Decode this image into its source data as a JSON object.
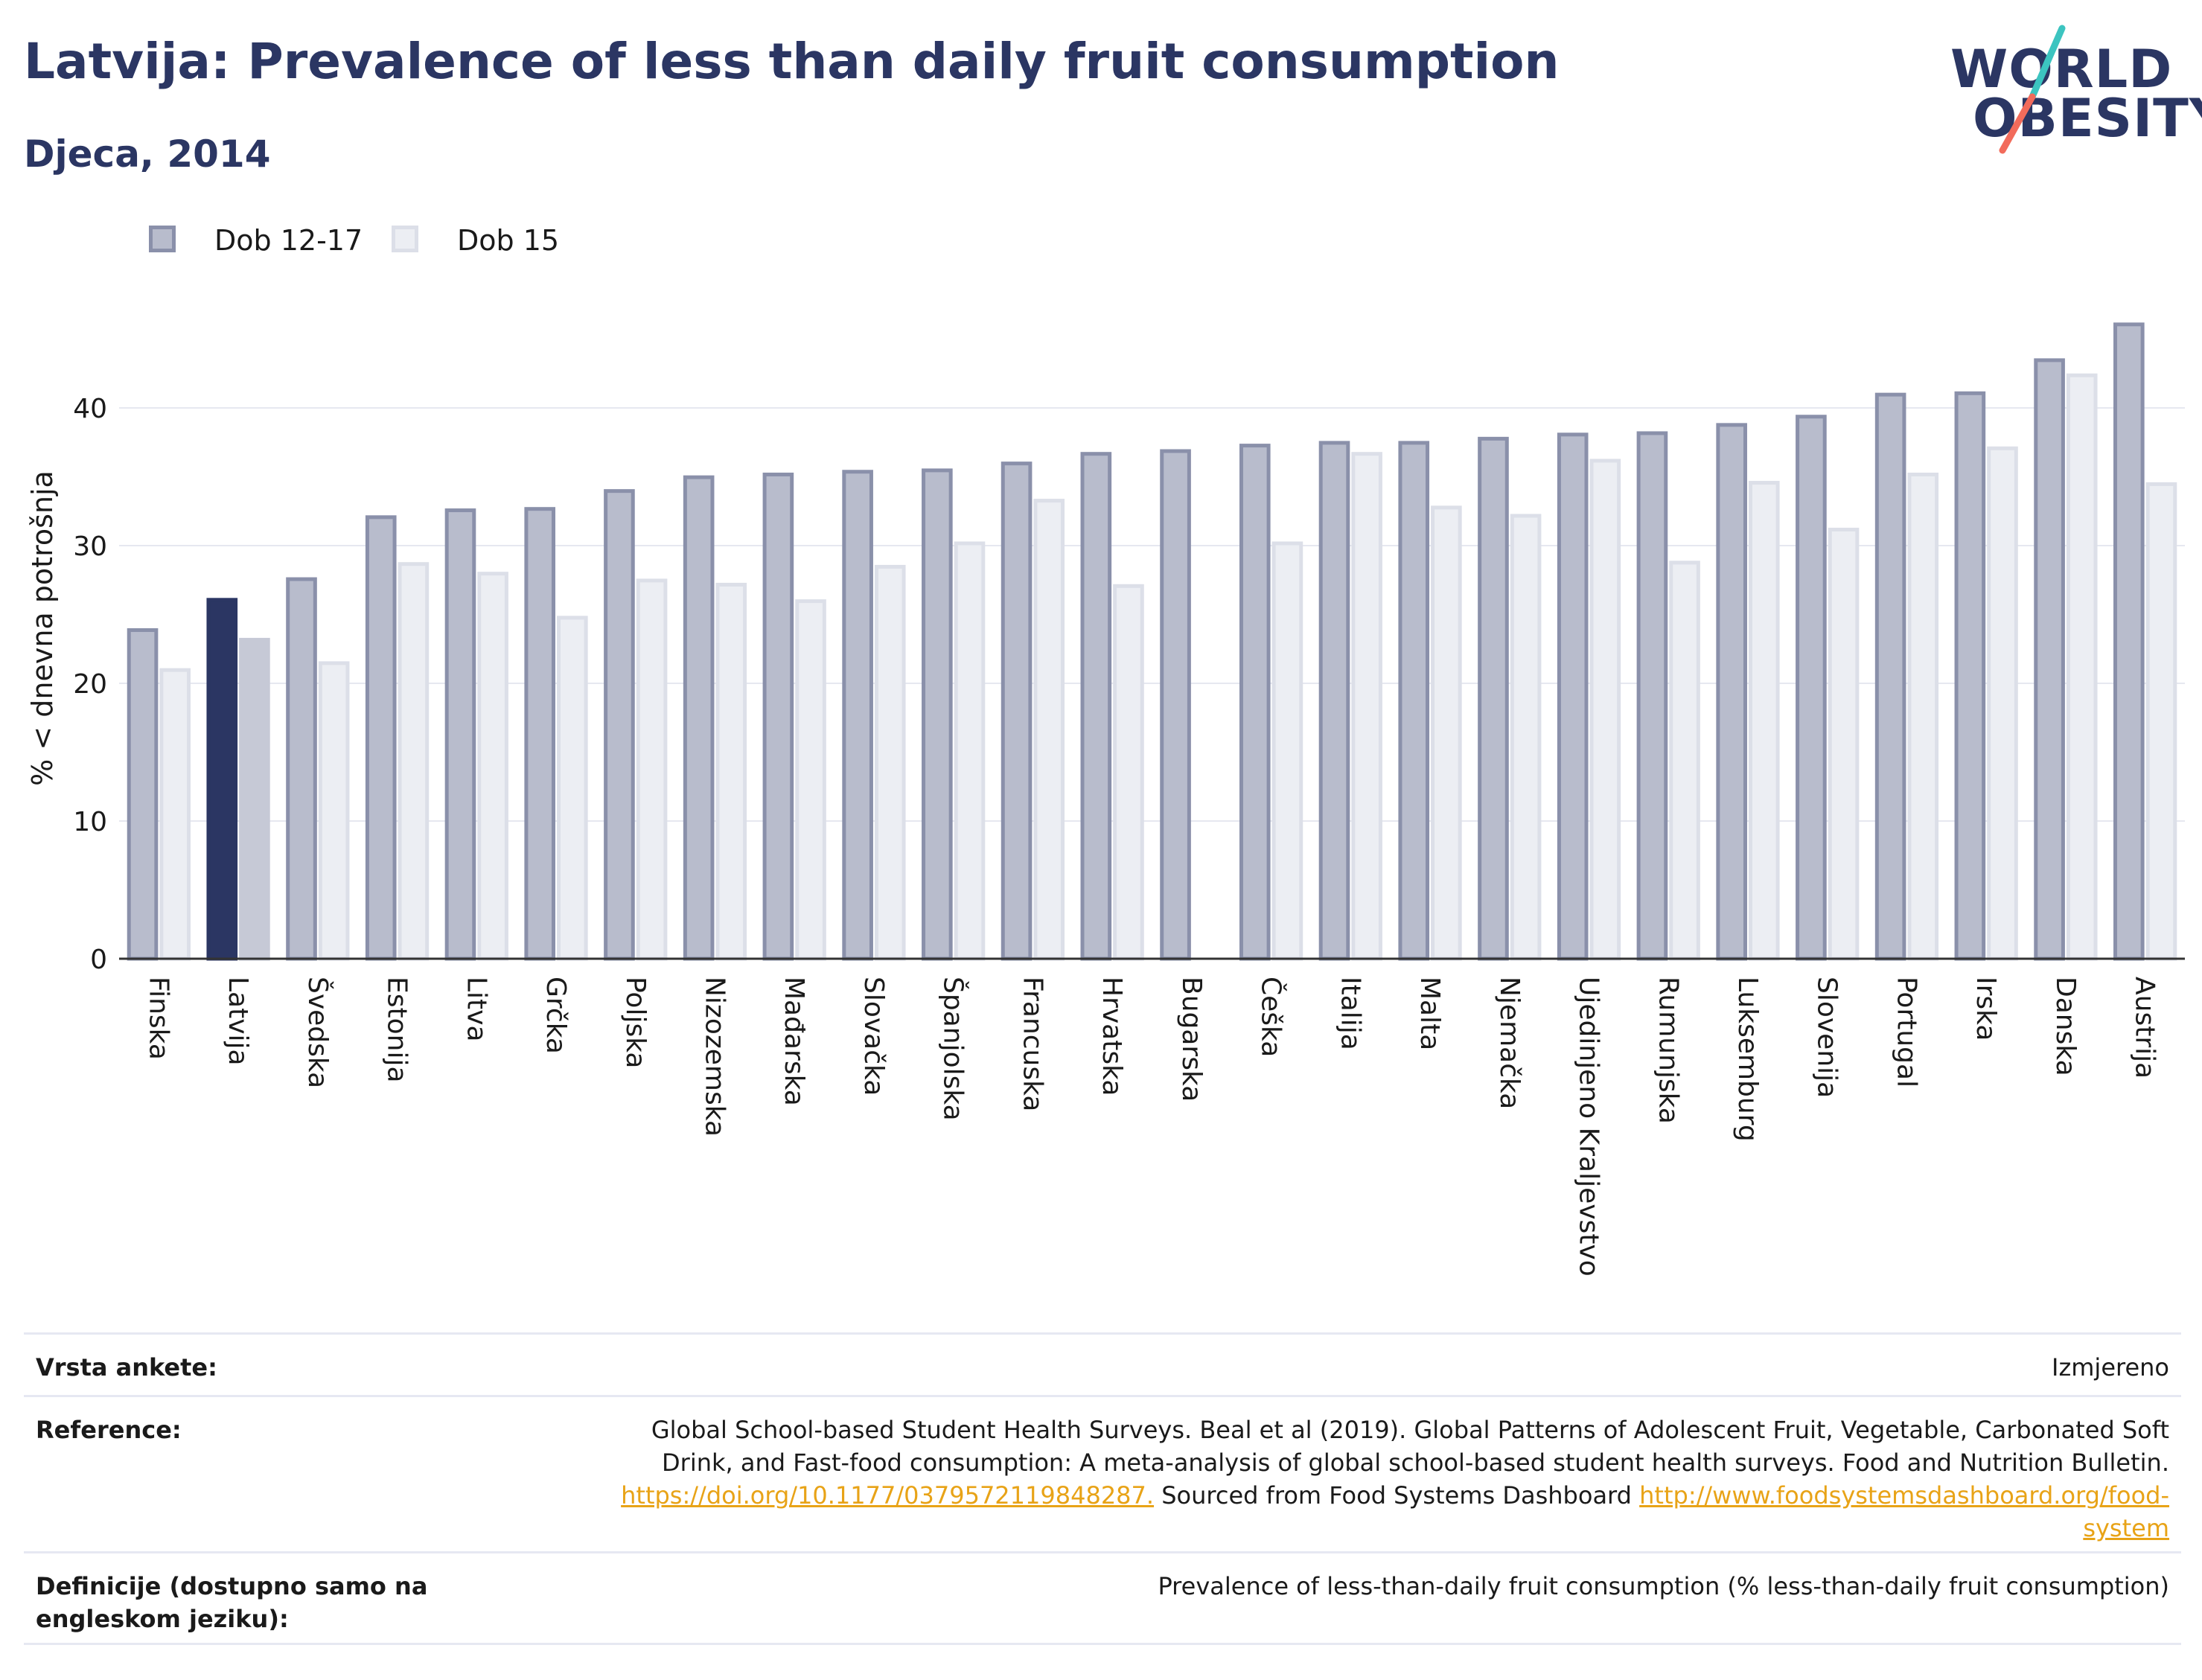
{
  "header": {
    "title": "Latvija: Prevalence of less than daily fruit consumption",
    "subtitle": "Djeca, 2014"
  },
  "logo": {
    "line1": "WORLD",
    "line2": "OBESITY",
    "slash_colors": [
      "#3cc4c0",
      "#f26b5b"
    ]
  },
  "colors": {
    "series1": "#b8bccc",
    "series1_stroke": "#8a90aa",
    "series2": "#eceef3",
    "series2_stroke": "#dcdfe8",
    "highlight1": "#2b3663",
    "highlight2": "#c6c9d6",
    "text": "#2b3663",
    "grid": "#e6e8f0"
  },
  "chart_data": {
    "type": "bar",
    "ylabel": "% < dnevna potrošnja",
    "ylim": [
      0,
      48
    ],
    "yticks": [
      0,
      10,
      20,
      30,
      40
    ],
    "grid": true,
    "legend_position": "top-left",
    "highlight_category": "Latvija",
    "categories": [
      "Finska",
      "Latvija",
      "Švedska",
      "Estonija",
      "Litva",
      "Grčka",
      "Poljska",
      "Nizozemska",
      "Mađarska",
      "Slovačka",
      "Španjolska",
      "Francuska",
      "Hrvatska",
      "Bugarska",
      "Češka",
      "Italija",
      "Malta",
      "Njemačka",
      "Ujedinjeno Kraljevstvo",
      "Rumunjska",
      "Luksemburg",
      "Slovenija",
      "Portugal",
      "Irska",
      "Danska",
      "Austrija"
    ],
    "series": [
      {
        "name": "Dob 12-17",
        "values": [
          24.0,
          26.2,
          27.7,
          32.2,
          32.7,
          32.8,
          34.1,
          35.1,
          35.3,
          35.5,
          35.6,
          36.1,
          36.8,
          37.0,
          37.4,
          37.6,
          37.6,
          37.9,
          38.2,
          38.3,
          38.9,
          39.5,
          41.1,
          41.2,
          43.6,
          46.2
        ]
      },
      {
        "name": "Dob 15",
        "values": [
          21.1,
          23.3,
          21.6,
          28.8,
          28.1,
          24.9,
          27.6,
          27.3,
          26.1,
          28.6,
          30.3,
          33.4,
          27.2,
          null,
          30.3,
          36.8,
          32.9,
          32.3,
          36.3,
          28.9,
          34.7,
          31.3,
          35.3,
          37.2,
          42.5,
          34.6
        ]
      }
    ]
  },
  "info": {
    "survey_type_label": "Vrsta ankete:",
    "survey_type_value": "Izmjereno",
    "references_label": "Reference:",
    "references_text": "Global School-based Student Health Surveys. Beal et al (2019). Global Patterns of Adolescent Fruit, Vegetable, Carbonated Soft Drink, and Fast-food consumption: A meta-analysis of global school-based student health surveys. Food and Nutrition Bulletin.",
    "references_link1": "https://doi.org/10.1177/0379572119848287.",
    "references_mid": "Sourced from Food Systems Dashboard",
    "references_link2": "http://www.foodsystemsdashboard.org/food-system",
    "definitions_label": "Definicije (dostupno samo na engleskom jeziku):",
    "definitions_value": "Prevalence of less-than-daily fruit consumption (% less-than-daily fruit consumption)"
  }
}
